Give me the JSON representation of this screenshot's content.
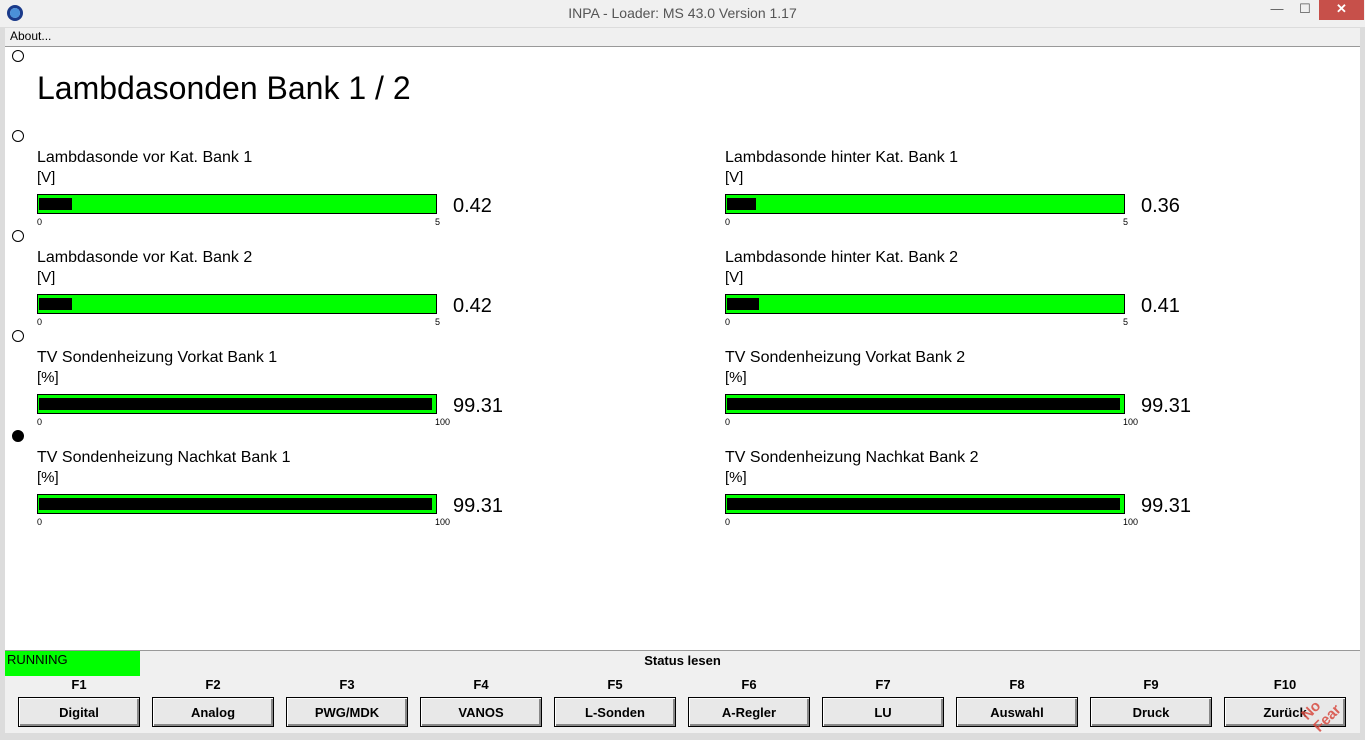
{
  "window": {
    "title": "INPA - Loader:  MS 43.0 Version 1.17",
    "minimize": "—",
    "maximize": "☐",
    "close": "✕"
  },
  "menu": {
    "about": "About..."
  },
  "page": {
    "title": "Lambdasonden Bank 1 / 2"
  },
  "gauges": [
    {
      "label": "Lambdasonde vor Kat. Bank 1",
      "unit": "[V]",
      "min": "0",
      "max": "5",
      "value": "0.42",
      "fill_fraction": 0.084
    },
    {
      "label": "Lambdasonde hinter Kat. Bank 1",
      "unit": "[V]",
      "min": "0",
      "max": "5",
      "value": "0.36",
      "fill_fraction": 0.072
    },
    {
      "label": "Lambdasonde vor Kat. Bank 2",
      "unit": "[V]",
      "min": "0",
      "max": "5",
      "value": "0.42",
      "fill_fraction": 0.084
    },
    {
      "label": "Lambdasonde hinter Kat. Bank 2",
      "unit": "[V]",
      "min": "0",
      "max": "5",
      "value": "0.41",
      "fill_fraction": 0.082
    },
    {
      "label": "TV Sondenheizung Vorkat Bank 1",
      "unit": "[%]",
      "min": "0",
      "max": "100",
      "value": "99.31",
      "fill_fraction": 0.9931
    },
    {
      "label": "TV Sondenheizung Vorkat Bank 2",
      "unit": "[%]",
      "min": "0",
      "max": "100",
      "value": "99.31",
      "fill_fraction": 0.9931
    },
    {
      "label": "TV Sondenheizung Nachkat Bank 1",
      "unit": "[%]",
      "min": "0",
      "max": "100",
      "value": "99.31",
      "fill_fraction": 0.9931
    },
    {
      "label": "TV Sondenheizung Nachkat Bank 2",
      "unit": "[%]",
      "min": "0",
      "max": "100",
      "value": "99.31",
      "fill_fraction": 0.9931
    }
  ],
  "status": {
    "state": "RUNNING",
    "text": "Status lesen"
  },
  "fkeys": [
    {
      "key": "F1",
      "label": "Digital"
    },
    {
      "key": "F2",
      "label": "Analog"
    },
    {
      "key": "F3",
      "label": "PWG/MDK"
    },
    {
      "key": "F4",
      "label": "VANOS"
    },
    {
      "key": "F5",
      "label": "L-Sonden"
    },
    {
      "key": "F6",
      "label": "A-Regler"
    },
    {
      "key": "F7",
      "label": "LU"
    },
    {
      "key": "F8",
      "label": "Auswahl"
    },
    {
      "key": "F9",
      "label": "Druck"
    },
    {
      "key": "F10",
      "label": "Zurück"
    }
  ],
  "watermark": {
    "text": "No Fear"
  },
  "colors": {
    "bar_bg": "#00ff00",
    "bar_fill": "#000000",
    "running": "#00ff00",
    "close": "#c7504a"
  }
}
